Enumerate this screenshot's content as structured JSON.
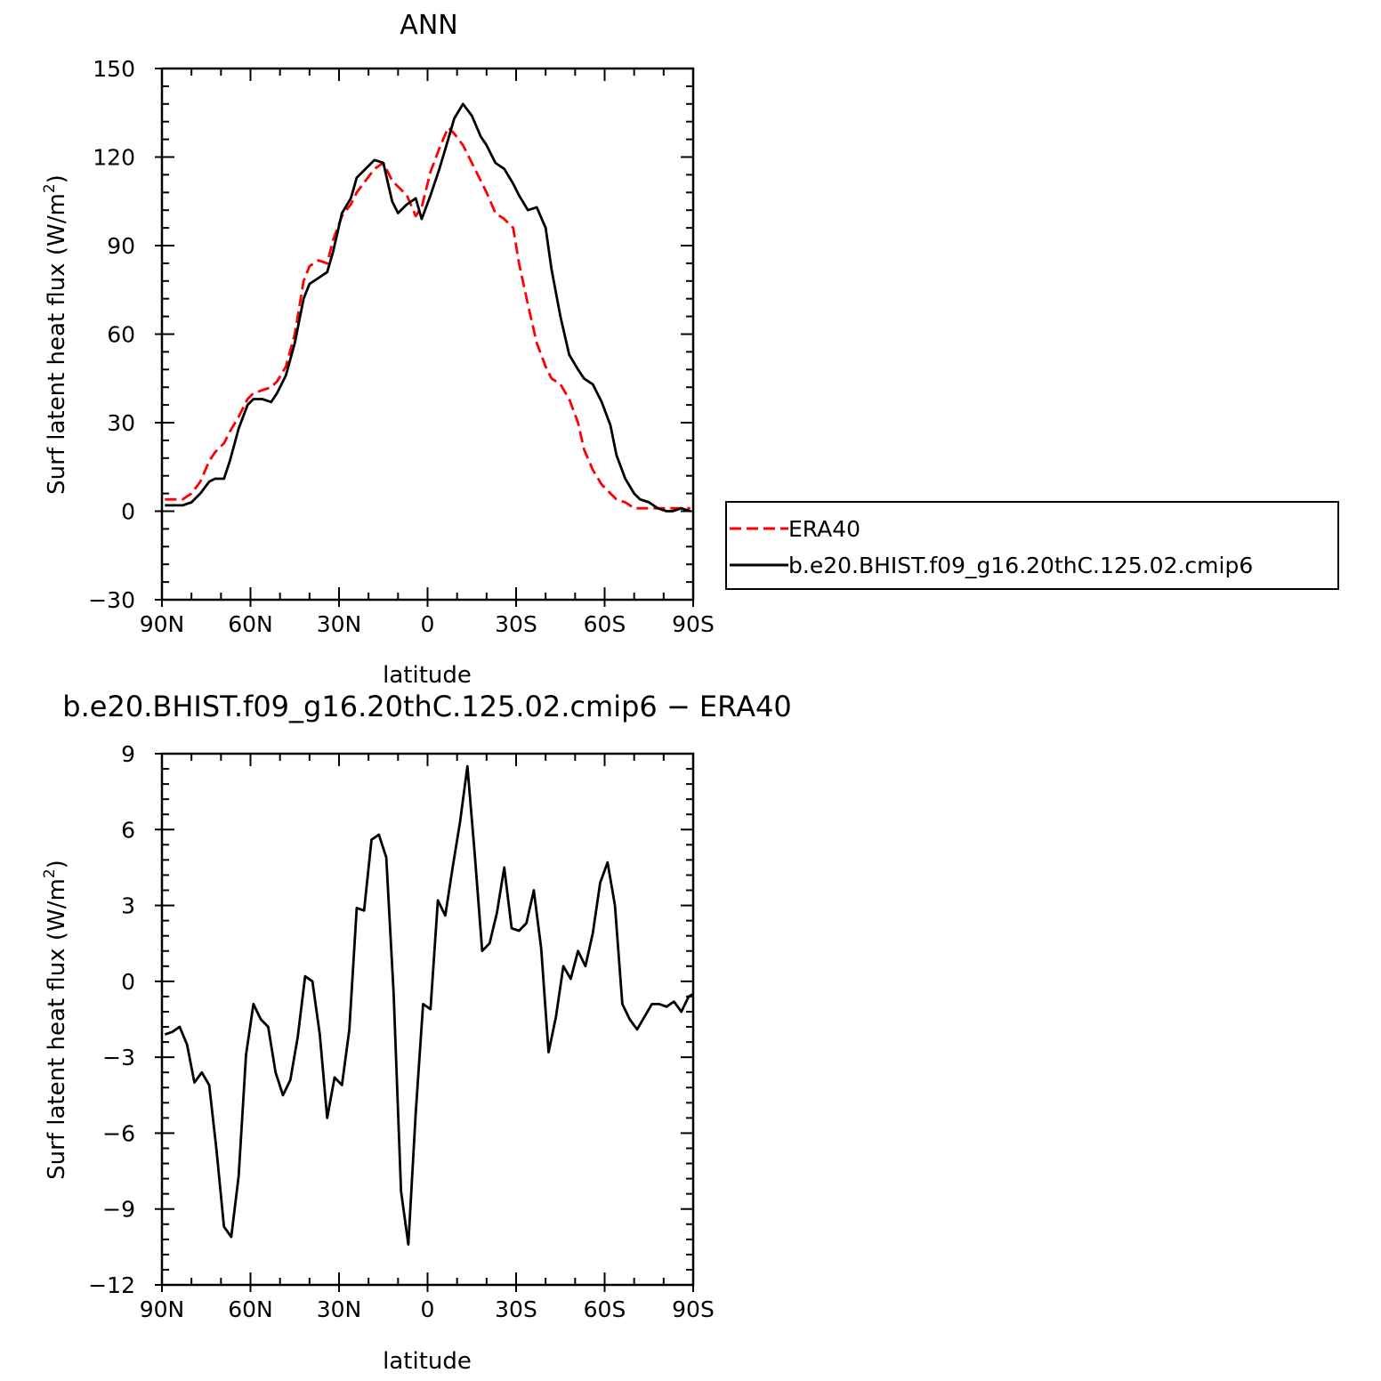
{
  "chart_data": [
    {
      "type": "line",
      "title": "ANN",
      "xlabel": "latitude",
      "ylabel_main": "Surf latent heat flux (W/m",
      "ylabel_sup": "2",
      "ylabel_end": ")",
      "xlim": [
        90,
        -90
      ],
      "ylim": [
        -30,
        150
      ],
      "xticks": [
        90,
        60,
        30,
        0,
        -30,
        -60,
        -90
      ],
      "xtick_labels": [
        "90N",
        "60N",
        "30N",
        "0",
        "30S",
        "60S",
        "90S"
      ],
      "yticks": [
        -30,
        0,
        30,
        60,
        90,
        120,
        150
      ],
      "ytick_labels": [
        "−30",
        "0",
        "30",
        "60",
        "90",
        "120",
        "150"
      ],
      "series": [
        {
          "name": "ERA40",
          "color": "#ff0000",
          "dash": "dashed",
          "x": [
            89,
            86,
            83,
            80,
            77,
            74,
            72,
            69,
            67,
            64,
            61,
            59,
            56,
            53,
            51,
            48,
            45,
            42,
            40,
            37,
            34,
            32,
            29,
            26,
            24,
            21,
            18,
            15,
            12,
            10,
            7,
            4,
            2,
            -1,
            -4,
            -7,
            -9,
            -12,
            -15,
            -18,
            -20,
            -23,
            -26,
            -29,
            -31,
            -34,
            -37,
            -40,
            -42,
            -45,
            -48,
            -51,
            -53,
            -56,
            -59,
            -62,
            -64,
            -67,
            -70,
            -72,
            -75,
            -78,
            -81,
            -83,
            -86,
            -89
          ],
          "y": [
            4,
            4,
            4,
            6,
            10,
            17,
            20,
            23,
            27,
            32,
            38,
            40,
            41,
            42,
            44,
            49,
            60,
            78,
            83,
            85,
            84,
            92,
            100,
            104,
            108,
            112,
            116,
            118,
            112,
            110,
            107,
            100,
            103,
            115,
            123,
            130,
            128,
            124,
            118,
            112,
            108,
            101,
            99,
            96,
            84,
            70,
            57,
            49,
            45,
            43,
            38,
            30,
            21,
            14,
            9,
            6,
            4,
            3,
            1,
            1,
            1,
            1,
            1,
            1,
            1,
            1
          ],
          "legend_label": "ERA40"
        },
        {
          "name": "b.e20.BHIST.f09_g16.20thC.125.02.cmip6",
          "color": "#000000",
          "dash": "solid",
          "x": [
            89,
            86,
            83,
            80,
            77,
            74,
            72,
            69,
            67,
            64,
            61,
            59,
            56,
            53,
            51,
            48,
            45,
            42,
            40,
            37,
            34,
            32,
            29,
            26,
            24,
            21,
            18,
            15,
            12,
            10,
            7,
            4,
            2,
            -1,
            -4,
            -7,
            -9,
            -12,
            -15,
            -18,
            -20,
            -23,
            -26,
            -29,
            -31,
            -34,
            -37,
            -40,
            -42,
            -45,
            -48,
            -51,
            -53,
            -56,
            -59,
            -62,
            -64,
            -67,
            -70,
            -72,
            -75,
            -78,
            -81,
            -83,
            -86,
            -89
          ],
          "y": [
            2,
            2,
            2,
            3,
            6,
            10,
            11,
            11,
            17,
            28,
            36,
            38,
            38,
            37,
            40,
            46,
            57,
            72,
            77,
            79,
            81,
            88,
            101,
            106,
            113,
            116,
            119,
            118,
            105,
            101,
            104,
            106,
            99,
            107,
            116,
            126,
            133,
            138,
            134,
            127,
            124,
            118,
            116,
            111,
            107,
            102,
            103,
            96,
            82,
            66,
            53,
            48,
            45,
            43,
            37,
            29,
            19,
            11,
            6,
            4,
            3,
            1,
            0,
            0,
            1,
            0
          ],
          "legend_label": "b.e20.BHIST.f09_g16.20thC.125.02.cmip6"
        }
      ],
      "legend": "right"
    },
    {
      "type": "line",
      "title": "b.e20.BHIST.f09_g16.20thC.125.02.cmip6 − ERA40",
      "xlabel": "latitude",
      "ylabel_main": "Surf latent heat flux (W/m",
      "ylabel_sup": "2",
      "ylabel_end": ")",
      "xlim": [
        90,
        -90
      ],
      "ylim": [
        -12,
        9
      ],
      "xticks": [
        90,
        60,
        30,
        0,
        -30,
        -60,
        -90
      ],
      "xtick_labels": [
        "90N",
        "60N",
        "30N",
        "0",
        "30S",
        "60S",
        "90S"
      ],
      "yticks": [
        -12,
        -9,
        -6,
        -3,
        0,
        3,
        6,
        9
      ],
      "ytick_labels": [
        "−12",
        "−9",
        "−6",
        "−3",
        "0",
        "3",
        "6",
        "9"
      ],
      "series": [
        {
          "color": "#000000",
          "dash": "solid",
          "x": [
            89,
            86.5,
            84,
            81.5,
            79,
            76.5,
            74,
            71.5,
            69,
            66.5,
            64,
            61.5,
            59,
            56.5,
            54,
            51.5,
            49,
            46.5,
            44,
            41.5,
            39,
            36.5,
            34,
            31.5,
            29,
            26.5,
            24,
            21.5,
            19,
            16.5,
            14,
            11.5,
            9,
            6.5,
            4,
            1.5,
            -1,
            -3.5,
            -6,
            -8.5,
            -11,
            -13.5,
            -16,
            -18.5,
            -21,
            -23.5,
            -26,
            -28.5,
            -31,
            -33.5,
            -36,
            -38.5,
            -41,
            -43.5,
            -46,
            -48.5,
            -51,
            -53.5,
            -56,
            -58.5,
            -61,
            -63.5,
            -66,
            -68.5,
            -71,
            -73.5,
            -76,
            -78.5,
            -81,
            -83.5,
            -86,
            -88.5,
            -90
          ],
          "y": [
            -2.1,
            -2.0,
            -1.8,
            -2.5,
            -4.0,
            -3.6,
            -4.1,
            -6.7,
            -9.7,
            -10.1,
            -7.7,
            -2.9,
            -0.9,
            -1.5,
            -1.8,
            -3.6,
            -4.5,
            -3.9,
            -2.2,
            0.2,
            0.0,
            -2.1,
            -5.4,
            -3.8,
            -4.1,
            -1.9,
            2.9,
            2.8,
            5.6,
            5.8,
            4.9,
            -0.5,
            -8.3,
            -10.4,
            -5.2,
            -0.9,
            -1.1,
            3.2,
            2.6,
            4.5,
            6.3,
            8.5,
            5.0,
            1.2,
            1.5,
            2.7,
            4.5,
            2.1,
            2.0,
            2.3,
            3.6,
            1.3,
            -2.8,
            -1.4,
            0.6,
            0.1,
            1.2,
            0.6,
            1.9,
            3.9,
            4.7,
            3.0,
            -0.9,
            -1.5,
            -1.9,
            -1.4,
            -0.9,
            -0.9,
            -1.0,
            -0.8,
            -1.2,
            -0.6,
            -0.5
          ]
        }
      ]
    }
  ]
}
